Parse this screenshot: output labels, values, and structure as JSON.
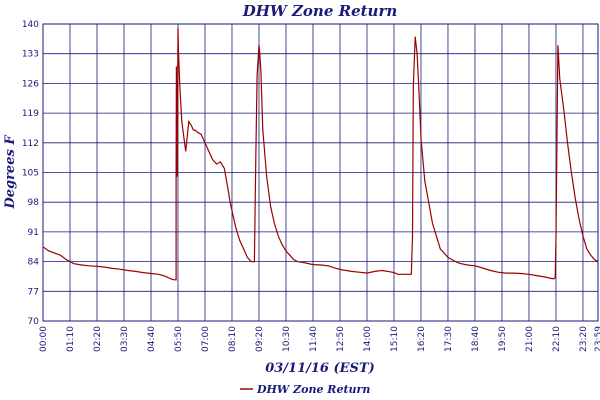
{
  "chart_data": {
    "type": "line",
    "title": "DHW Zone Return",
    "xlabel": "03/11/16 (EST)",
    "ylabel": "Degrees F",
    "ylim": [
      70,
      140
    ],
    "xlim": [
      "00:00",
      "23:59"
    ],
    "yticks": [
      "70",
      "77",
      "84",
      "91",
      "98",
      "105",
      "112",
      "119",
      "126",
      "133",
      "140"
    ],
    "xticks": [
      "00:00",
      "01:10",
      "02:20",
      "03:30",
      "04:40",
      "05:50",
      "07:00",
      "08:10",
      "09:20",
      "10:30",
      "11:40",
      "12:50",
      "14:00",
      "15:10",
      "16:20",
      "17:30",
      "18:40",
      "19:50",
      "21:00",
      "22:10",
      "23:20",
      "23:59"
    ],
    "grid": true,
    "legend_position": "bottom-center",
    "series": [
      {
        "name": "DHW Zone Return",
        "color": "#9b0000",
        "x": [
          "00:00",
          "00:15",
          "00:30",
          "00:45",
          "01:00",
          "01:20",
          "01:40",
          "02:00",
          "02:20",
          "02:40",
          "03:00",
          "03:20",
          "03:40",
          "04:00",
          "04:20",
          "04:40",
          "05:00",
          "05:15",
          "05:25",
          "05:35",
          "05:40",
          "05:45",
          "05:45",
          "05:46",
          "05:48",
          "05:50",
          "05:51",
          "05:55",
          "06:00",
          "06:10",
          "06:18",
          "06:25",
          "06:30",
          "06:35",
          "06:40",
          "06:50",
          "07:00",
          "07:10",
          "07:20",
          "07:30",
          "07:40",
          "07:50",
          "08:00",
          "08:05",
          "08:10",
          "08:20",
          "08:30",
          "08:40",
          "08:50",
          "09:00",
          "09:05",
          "09:08",
          "09:12",
          "09:15",
          "09:20",
          "09:22",
          "09:25",
          "09:30",
          "09:40",
          "09:50",
          "10:00",
          "10:10",
          "10:20",
          "10:30",
          "10:40",
          "10:50",
          "11:00",
          "11:20",
          "11:40",
          "12:00",
          "12:20",
          "12:40",
          "13:00",
          "13:20",
          "13:40",
          "14:00",
          "14:20",
          "14:40",
          "15:00",
          "15:10",
          "15:20",
          "15:40",
          "15:55",
          "15:58",
          "16:00",
          "16:05",
          "16:10",
          "16:15",
          "16:20",
          "16:25",
          "16:30",
          "16:40",
          "16:50",
          "17:00",
          "17:10",
          "17:20",
          "17:30",
          "17:40",
          "17:50",
          "18:00",
          "18:20",
          "18:40",
          "19:00",
          "19:20",
          "19:40",
          "20:00",
          "20:20",
          "20:40",
          "21:00",
          "21:20",
          "21:40",
          "22:00",
          "22:05",
          "22:08",
          "22:10",
          "22:15",
          "22:20",
          "22:30",
          "22:40",
          "22:50",
          "23:00",
          "23:10",
          "23:20",
          "23:30",
          "23:40",
          "23:50",
          "23:59"
        ],
        "y": [
          87.5,
          86.5,
          86,
          85.5,
          84.5,
          83.5,
          83.2,
          83,
          82.9,
          82.7,
          82.4,
          82.2,
          81.9,
          81.7,
          81.4,
          81.2,
          81,
          80.6,
          80.2,
          79.8,
          79.7,
          79.7,
          104,
          130,
          104,
          139,
          134,
          125,
          117,
          110,
          117,
          116,
          115,
          115,
          114.5,
          114,
          112,
          110,
          108,
          107,
          107.5,
          106,
          101,
          98,
          96,
          92,
          89,
          87,
          85,
          84,
          84,
          84,
          110,
          128,
          135,
          133,
          129,
          115,
          104,
          97,
          93,
          90,
          88,
          86.5,
          85.5,
          84.5,
          84,
          83.7,
          83.3,
          83.2,
          83,
          82.4,
          82,
          81.7,
          81.5,
          81.3,
          81.7,
          81.9,
          81.6,
          81.4,
          81,
          81,
          81,
          90,
          125,
          137,
          133,
          124,
          113,
          108,
          103,
          98,
          93,
          90,
          87,
          86,
          85,
          84.5,
          84,
          83.6,
          83.2,
          83,
          82.5,
          81.9,
          81.5,
          81.3,
          81.3,
          81.2,
          81,
          80.7,
          80.4,
          80,
          80,
          80.2,
          90,
          135,
          127,
          120,
          112,
          105,
          99,
          94,
          90,
          87,
          85.5,
          84.5,
          84
        ]
      }
    ]
  }
}
